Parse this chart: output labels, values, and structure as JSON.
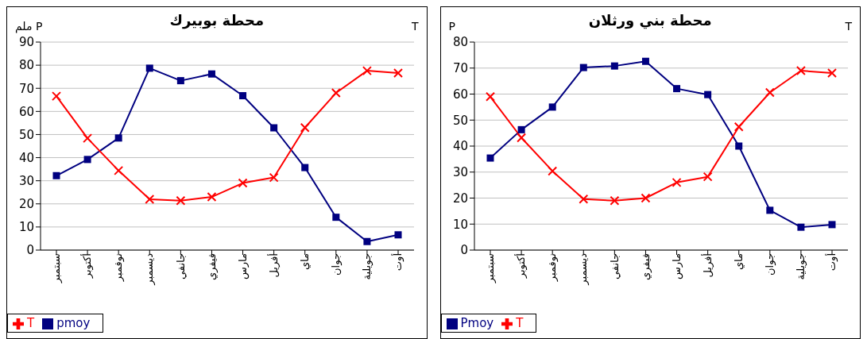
{
  "chart_data": [
    {
      "type": "line",
      "title": "محطة بوبيرك",
      "ylabel": "ملم P",
      "y2label": "T",
      "categories": [
        "سبتمبر",
        "أكتوبر",
        "نوفمبر",
        "ديسمبر",
        "جانفي",
        "فيفري",
        "مارس",
        "أفريل",
        "ماي",
        "جوان",
        "جويلية",
        "أوت"
      ],
      "series": [
        {
          "name": "pmoy",
          "color": "#000080",
          "marker": "square",
          "values": [
            32.2,
            39.2,
            48.5,
            78.7,
            73.3,
            76.2,
            66.8,
            52.9,
            35.7,
            14.2,
            3.7,
            6.6
          ]
        },
        {
          "name": "T",
          "color": "#ff0000",
          "marker": "cross",
          "values": [
            66.6,
            48.4,
            34.4,
            22,
            21.4,
            23,
            29,
            31.4,
            53,
            68,
            77.6,
            76.6
          ]
        }
      ],
      "ylim": [
        0,
        90
      ],
      "yticks": [
        0,
        10,
        20,
        30,
        40,
        50,
        60,
        70,
        80,
        90
      ],
      "grid": "y",
      "legend": "bottom left"
    },
    {
      "type": "line",
      "title": "محطة بني ورثلان",
      "ylabel": "P",
      "y2label": "T",
      "categories": [
        "سبتمبر",
        "أكتوبر",
        "نوفمبر",
        "ديسمبر",
        "جانفي",
        "فيفري",
        "مارس",
        "أفريل",
        "ماي",
        "جوان",
        "جويلية",
        "أوت"
      ],
      "series": [
        {
          "name": "Pmoy",
          "color": "#000080",
          "marker": "square",
          "values": [
            35.4,
            46.3,
            55,
            70.2,
            70.8,
            72.6,
            62.1,
            59.8,
            40,
            15.3,
            8.8,
            9.8
          ]
        },
        {
          "name": "T",
          "color": "#ff0000",
          "marker": "cross",
          "values": [
            59,
            43.2,
            30.4,
            19.6,
            19,
            20,
            26,
            28.2,
            47.4,
            60.6,
            69,
            68.1
          ]
        }
      ],
      "ylim": [
        0,
        80
      ],
      "yticks": [
        0,
        10,
        20,
        30,
        40,
        50,
        60,
        70,
        80
      ],
      "grid": "y",
      "legend": "bottom left"
    }
  ]
}
